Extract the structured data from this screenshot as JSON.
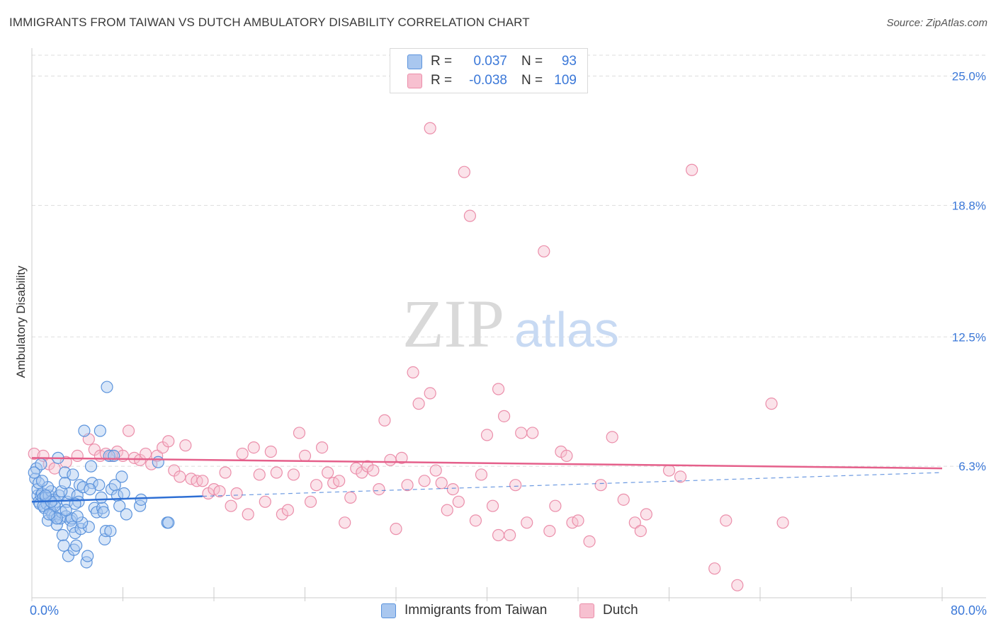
{
  "header": {
    "title": "IMMIGRANTS FROM TAIWAN VS DUTCH AMBULATORY DISABILITY CORRELATION CHART",
    "source": "Source: ZipAtlas.com"
  },
  "legend": {
    "series": [
      {
        "r_label": "R =",
        "r_value": "0.037",
        "n_label": "N =",
        "n_value": "93"
      },
      {
        "r_label": "R =",
        "r_value": "-0.038",
        "n_label": "N =",
        "n_value": "109"
      }
    ]
  },
  "watermark": {
    "zip": "ZIP",
    "atlas": "atlas"
  },
  "colors": {
    "blue_fill": "#a9c7ef",
    "blue_stroke": "#5b93dc",
    "blue_line": "#2e6fd4",
    "pink_fill": "#f7c0d0",
    "pink_stroke": "#eb8eaa",
    "pink_line": "#e5608b",
    "tick_label": "#3b78d8",
    "grid": "#dddddd"
  },
  "chart_data": {
    "type": "scatter",
    "title": "IMMIGRANTS FROM TAIWAN VS DUTCH AMBULATORY DISABILITY CORRELATION CHART",
    "xlabel": "",
    "ylabel": "Ambulatory Disability",
    "xlim": [
      0,
      80
    ],
    "ylim": [
      0,
      26
    ],
    "x_tick_labels": [
      "0.0%",
      "80.0%"
    ],
    "y_ticks": [
      6.3,
      12.5,
      18.8,
      25.0
    ],
    "y_tick_labels": [
      "6.3%",
      "12.5%",
      "18.8%",
      "25.0%"
    ],
    "series": [
      {
        "name": "Immigrants from Taiwan",
        "color": "blue",
        "trend": {
          "x0": 0,
          "y0": 4.6,
          "x1": 80,
          "y1": 6.0,
          "solid_until": 15
        },
        "points": [
          [
            0.3,
            5.7
          ],
          [
            0.4,
            6.2
          ],
          [
            0.5,
            4.9
          ],
          [
            0.5,
            5.2
          ],
          [
            0.6,
            4.6
          ],
          [
            0.7,
            4.5
          ],
          [
            0.8,
            4.9
          ],
          [
            0.8,
            6.4
          ],
          [
            0.9,
            5.0
          ],
          [
            1.0,
            4.8
          ],
          [
            1.1,
            4.3
          ],
          [
            1.2,
            4.8
          ],
          [
            1.3,
            4.5
          ],
          [
            1.4,
            3.7
          ],
          [
            1.5,
            4.9
          ],
          [
            1.6,
            4.2
          ],
          [
            1.7,
            5.1
          ],
          [
            1.8,
            4.0
          ],
          [
            1.9,
            4.7
          ],
          [
            2.0,
            3.9
          ],
          [
            2.1,
            4.6
          ],
          [
            2.2,
            3.5
          ],
          [
            2.3,
            6.7
          ],
          [
            2.4,
            4.9
          ],
          [
            2.5,
            3.8
          ],
          [
            2.6,
            4.1
          ],
          [
            2.7,
            3.0
          ],
          [
            2.8,
            2.5
          ],
          [
            2.9,
            6.0
          ],
          [
            3.0,
            3.9
          ],
          [
            3.1,
            4.6
          ],
          [
            3.2,
            2.0
          ],
          [
            3.3,
            5.0
          ],
          [
            3.4,
            3.7
          ],
          [
            3.5,
            3.8
          ],
          [
            3.6,
            3.4
          ],
          [
            3.7,
            2.3
          ],
          [
            3.8,
            3.1
          ],
          [
            3.9,
            2.5
          ],
          [
            4.0,
            4.9
          ],
          [
            4.1,
            4.6
          ],
          [
            4.2,
            5.4
          ],
          [
            4.3,
            3.3
          ],
          [
            4.5,
            5.3
          ],
          [
            4.6,
            8.0
          ],
          [
            4.8,
            1.7
          ],
          [
            4.9,
            2.0
          ],
          [
            5.0,
            3.4
          ],
          [
            5.2,
            6.3
          ],
          [
            5.3,
            5.5
          ],
          [
            5.5,
            4.3
          ],
          [
            5.7,
            4.1
          ],
          [
            5.9,
            5.4
          ],
          [
            6.0,
            8.0
          ],
          [
            6.2,
            4.3
          ],
          [
            6.3,
            4.1
          ],
          [
            6.4,
            2.8
          ],
          [
            6.5,
            3.2
          ],
          [
            6.6,
            10.1
          ],
          [
            6.8,
            6.8
          ],
          [
            6.9,
            3.2
          ],
          [
            7.0,
            5.2
          ],
          [
            7.2,
            6.8
          ],
          [
            7.3,
            5.4
          ],
          [
            7.5,
            4.9
          ],
          [
            7.7,
            4.4
          ],
          [
            7.9,
            5.8
          ],
          [
            8.1,
            5.0
          ],
          [
            8.3,
            4.0
          ],
          [
            9.5,
            4.4
          ],
          [
            9.6,
            4.7
          ],
          [
            11.1,
            6.5
          ],
          [
            11.9,
            3.6
          ],
          [
            12.0,
            3.6
          ],
          [
            0.2,
            6.0
          ],
          [
            0.6,
            5.5
          ],
          [
            1.4,
            5.3
          ],
          [
            2.0,
            4.4
          ],
          [
            2.6,
            5.1
          ],
          [
            3.6,
            5.9
          ],
          [
            4.4,
            3.6
          ],
          [
            5.1,
            5.2
          ],
          [
            1.0,
            4.4
          ],
          [
            1.7,
            4.6
          ],
          [
            2.2,
            3.8
          ],
          [
            3.0,
            4.2
          ],
          [
            4.0,
            3.9
          ],
          [
            0.9,
            5.6
          ],
          [
            1.5,
            4.0
          ],
          [
            2.9,
            5.5
          ],
          [
            3.8,
            4.5
          ],
          [
            6.1,
            4.8
          ],
          [
            1.2,
            4.9
          ]
        ]
      },
      {
        "name": "Dutch",
        "color": "pink",
        "trend": {
          "x0": 0,
          "y0": 6.7,
          "x1": 80,
          "y1": 6.2
        },
        "points": [
          [
            0.2,
            6.9
          ],
          [
            1.0,
            6.8
          ],
          [
            1.5,
            6.4
          ],
          [
            2.0,
            6.2
          ],
          [
            3.0,
            6.5
          ],
          [
            4.0,
            6.8
          ],
          [
            5.0,
            7.6
          ],
          [
            5.5,
            7.1
          ],
          [
            6.0,
            6.8
          ],
          [
            6.5,
            6.9
          ],
          [
            7.0,
            6.8
          ],
          [
            7.5,
            7.0
          ],
          [
            8.0,
            6.8
          ],
          [
            8.5,
            8.0
          ],
          [
            9.0,
            6.7
          ],
          [
            9.5,
            6.6
          ],
          [
            10.0,
            6.9
          ],
          [
            10.5,
            6.4
          ],
          [
            11.0,
            6.8
          ],
          [
            11.5,
            7.2
          ],
          [
            12.0,
            7.5
          ],
          [
            12.5,
            6.1
          ],
          [
            13.0,
            5.8
          ],
          [
            13.5,
            7.3
          ],
          [
            14.0,
            5.7
          ],
          [
            14.5,
            5.6
          ],
          [
            15.0,
            5.6
          ],
          [
            15.5,
            5.0
          ],
          [
            16.0,
            5.2
          ],
          [
            16.5,
            5.1
          ],
          [
            17.0,
            6.0
          ],
          [
            17.5,
            4.4
          ],
          [
            18.0,
            5.0
          ],
          [
            18.5,
            6.9
          ],
          [
            19.0,
            4.0
          ],
          [
            19.5,
            7.2
          ],
          [
            20.0,
            5.9
          ],
          [
            20.5,
            4.6
          ],
          [
            21.0,
            7.0
          ],
          [
            21.5,
            6.0
          ],
          [
            22.0,
            4.0
          ],
          [
            22.5,
            4.2
          ],
          [
            23.0,
            5.9
          ],
          [
            23.5,
            7.9
          ],
          [
            24.0,
            6.8
          ],
          [
            24.5,
            4.6
          ],
          [
            25.0,
            5.4
          ],
          [
            25.5,
            7.2
          ],
          [
            26.0,
            6.0
          ],
          [
            26.5,
            5.5
          ],
          [
            27.0,
            5.6
          ],
          [
            27.5,
            3.6
          ],
          [
            28.0,
            4.8
          ],
          [
            28.5,
            6.2
          ],
          [
            29.0,
            6.0
          ],
          [
            29.5,
            6.3
          ],
          [
            30.0,
            6.1
          ],
          [
            30.5,
            5.2
          ],
          [
            31.0,
            8.5
          ],
          [
            31.5,
            6.6
          ],
          [
            32.0,
            3.3
          ],
          [
            32.5,
            6.7
          ],
          [
            33.0,
            5.4
          ],
          [
            33.5,
            10.8
          ],
          [
            34.0,
            9.3
          ],
          [
            34.5,
            5.6
          ],
          [
            35.0,
            9.8
          ],
          [
            35.5,
            6.1
          ],
          [
            36.0,
            5.5
          ],
          [
            36.5,
            4.2
          ],
          [
            37.0,
            5.2
          ],
          [
            37.5,
            4.6
          ],
          [
            38.0,
            20.4
          ],
          [
            38.5,
            18.3
          ],
          [
            39.0,
            3.7
          ],
          [
            39.5,
            5.9
          ],
          [
            40.0,
            7.8
          ],
          [
            40.5,
            4.4
          ],
          [
            41.0,
            3.0
          ],
          [
            41.5,
            8.7
          ],
          [
            42.0,
            3.0
          ],
          [
            42.5,
            5.4
          ],
          [
            43.0,
            7.9
          ],
          [
            43.5,
            3.6
          ],
          [
            44.0,
            7.9
          ],
          [
            45.0,
            16.6
          ],
          [
            45.5,
            3.2
          ],
          [
            46.0,
            4.4
          ],
          [
            46.5,
            7.0
          ],
          [
            47.0,
            6.8
          ],
          [
            47.5,
            3.6
          ],
          [
            48.0,
            3.7
          ],
          [
            49.0,
            2.7
          ],
          [
            50.0,
            5.4
          ],
          [
            51.0,
            7.7
          ],
          [
            52.0,
            4.7
          ],
          [
            53.0,
            3.6
          ],
          [
            53.5,
            3.2
          ],
          [
            54.0,
            4.0
          ],
          [
            56.0,
            6.1
          ],
          [
            57.0,
            5.8
          ],
          [
            58.0,
            20.5
          ],
          [
            60.0,
            1.4
          ],
          [
            61.0,
            3.7
          ],
          [
            62.0,
            0.6
          ],
          [
            65.0,
            9.3
          ],
          [
            66.0,
            3.6
          ],
          [
            41.0,
            10.0
          ],
          [
            35.0,
            22.5
          ]
        ]
      }
    ]
  },
  "bottom_legend": {
    "items": [
      "Immigrants from Taiwan",
      "Dutch"
    ]
  }
}
